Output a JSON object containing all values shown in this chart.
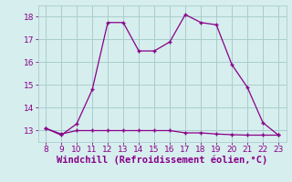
{
  "x": [
    8,
    9,
    10,
    11,
    12,
    13,
    14,
    15,
    16,
    17,
    18,
    19,
    20,
    21,
    22,
    23
  ],
  "y_main": [
    13.1,
    12.8,
    13.3,
    14.8,
    17.75,
    17.75,
    16.5,
    16.5,
    16.9,
    18.1,
    17.75,
    17.65,
    15.9,
    14.9,
    13.35,
    12.8
  ],
  "y_flat": [
    13.1,
    12.85,
    13.0,
    13.0,
    13.0,
    13.0,
    13.0,
    13.0,
    13.0,
    12.9,
    12.9,
    12.85,
    12.82,
    12.8,
    12.8,
    12.8
  ],
  "line_color": "#880088",
  "bg_color": "#d6eeee",
  "grid_color": "#aacccc",
  "xlabel": "Windchill (Refroidissement éolien,°C)",
  "xlim": [
    7.5,
    23.5
  ],
  "ylim": [
    12.5,
    18.5
  ],
  "yticks": [
    13,
    14,
    15,
    16,
    17,
    18
  ],
  "xticks": [
    8,
    9,
    10,
    11,
    12,
    13,
    14,
    15,
    16,
    17,
    18,
    19,
    20,
    21,
    22,
    23
  ],
  "xlabel_color": "#880088",
  "xlabel_fontsize": 7.5,
  "tick_fontsize": 6.5,
  "marker": "+"
}
